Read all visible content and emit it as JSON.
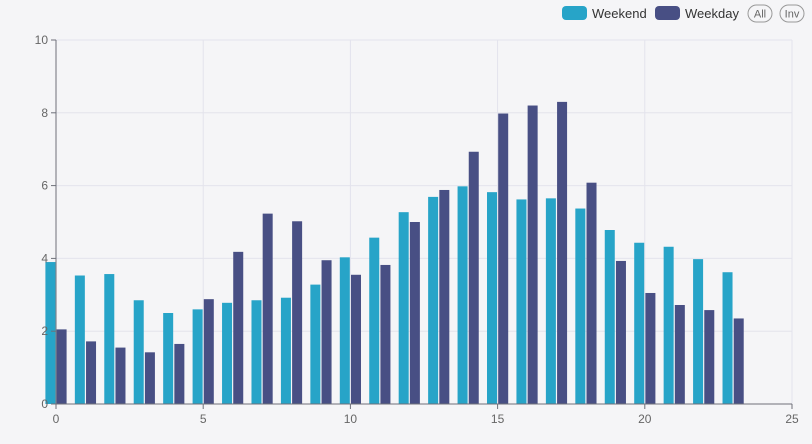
{
  "chart_data": {
    "type": "bar",
    "x": [
      0,
      1,
      2,
      3,
      4,
      5,
      6,
      7,
      8,
      9,
      10,
      11,
      12,
      13,
      14,
      15,
      16,
      17,
      18,
      19,
      20,
      21,
      22,
      23
    ],
    "series": [
      {
        "name": "Weekend",
        "color": "#27a4c8",
        "values": [
          3.9,
          3.53,
          3.57,
          2.85,
          2.5,
          2.6,
          2.78,
          2.85,
          2.92,
          3.28,
          4.03,
          4.57,
          5.27,
          5.69,
          5.98,
          5.82,
          5.62,
          5.65,
          5.37,
          4.78,
          4.43,
          4.32,
          3.98,
          3.62
        ]
      },
      {
        "name": "Weekday",
        "color": "#484f84",
        "values": [
          2.05,
          1.72,
          1.55,
          1.42,
          1.65,
          2.88,
          4.18,
          5.23,
          5.02,
          3.95,
          3.55,
          3.82,
          5.0,
          5.88,
          6.93,
          7.98,
          8.2,
          8.3,
          6.08,
          3.93,
          3.05,
          2.72,
          2.58,
          2.35
        ]
      }
    ],
    "xlim": [
      0,
      25
    ],
    "ylim": [
      0,
      10
    ],
    "x_ticks": [
      "0",
      "5",
      "10",
      "15",
      "20",
      "25"
    ],
    "y_ticks": [
      "0",
      "2",
      "4",
      "6",
      "8",
      "10"
    ],
    "grid": true,
    "legend_position": "top-right",
    "title": "",
    "xlabel": "",
    "ylabel": ""
  },
  "legend_buttons": {
    "all_label": "All",
    "inv_label": "Inv"
  }
}
